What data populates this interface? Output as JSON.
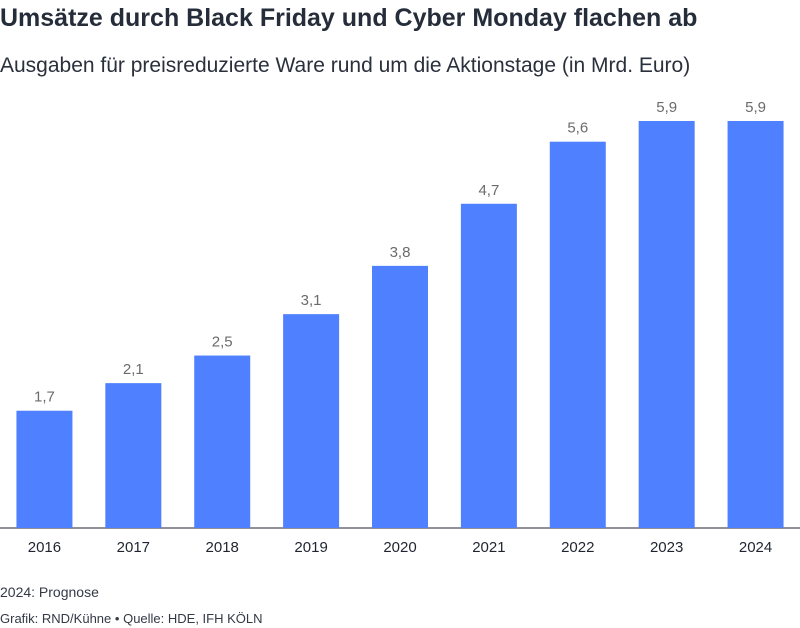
{
  "header": {
    "title": "Umsätze durch Black Friday und Cyber Monday flachen ab",
    "subtitle": "Ausgaben für preisreduzierte Ware rund um die Aktionstage (in Mrd. Euro)"
  },
  "footer": {
    "note": "2024: Prognose",
    "credit": "Grafik: RND/Kühne",
    "separator": "•",
    "source": "Quelle: HDE, IFH KÖLN"
  },
  "colors": {
    "bar": "#4f80ff",
    "label": "#6b6b6b",
    "axis": "#1f2530"
  },
  "chart_data": {
    "type": "bar",
    "title": "Umsätze durch Black Friday und Cyber Monday flachen ab",
    "subtitle": "Ausgaben für preisreduzierte Ware rund um die Aktionstage (in Mrd. Euro)",
    "categories": [
      "2016",
      "2017",
      "2018",
      "2019",
      "2020",
      "2021",
      "2022",
      "2023",
      "2024"
    ],
    "values": [
      1.7,
      2.1,
      2.5,
      3.1,
      3.8,
      4.7,
      5.6,
      5.9,
      5.9
    ],
    "value_labels": [
      "1,7",
      "2,1",
      "2,5",
      "3,1",
      "3,8",
      "4,7",
      "5,6",
      "5,9",
      "5,9"
    ],
    "xlabel": "",
    "ylabel": "",
    "ylim": [
      0,
      5.9
    ],
    "grid": false,
    "legend": "none"
  }
}
